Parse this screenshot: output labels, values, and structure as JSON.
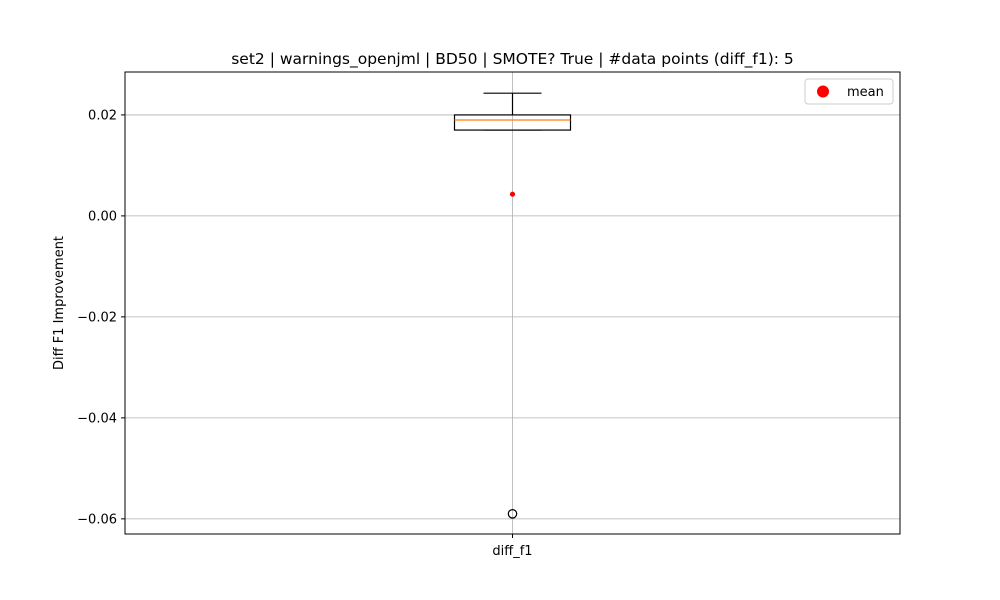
{
  "chart_data": {
    "type": "box",
    "title": "set2 | warnings_openjml | BD50 | SMOTE? True | #data points (diff_f1): 5",
    "xlabel": "",
    "ylabel": "Diff F1 Improvement",
    "categories": [
      "diff_f1"
    ],
    "ylim": [
      -0.063,
      0.0285
    ],
    "yticks": [
      0.02,
      0.0,
      -0.02,
      -0.04,
      -0.06
    ],
    "ytick_labels": [
      "0.02",
      "0.00",
      "−0.02",
      "−0.04",
      "−0.06"
    ],
    "grid": true,
    "legend_position": "top-right",
    "legend": [
      {
        "label": "mean",
        "color": "#ff0000",
        "marker": "circle"
      }
    ],
    "boxes": [
      {
        "category": "diff_f1",
        "whisker_low": 0.017,
        "q1": 0.017,
        "median": 0.019,
        "q3": 0.02,
        "whisker_high": 0.0243,
        "mean": 0.0043,
        "outliers": [
          -0.059
        ]
      }
    ],
    "colors": {
      "box": "#000000",
      "median": "#ff7f0e",
      "mean": "#ff0000",
      "grid": "#b0b0b0"
    }
  }
}
